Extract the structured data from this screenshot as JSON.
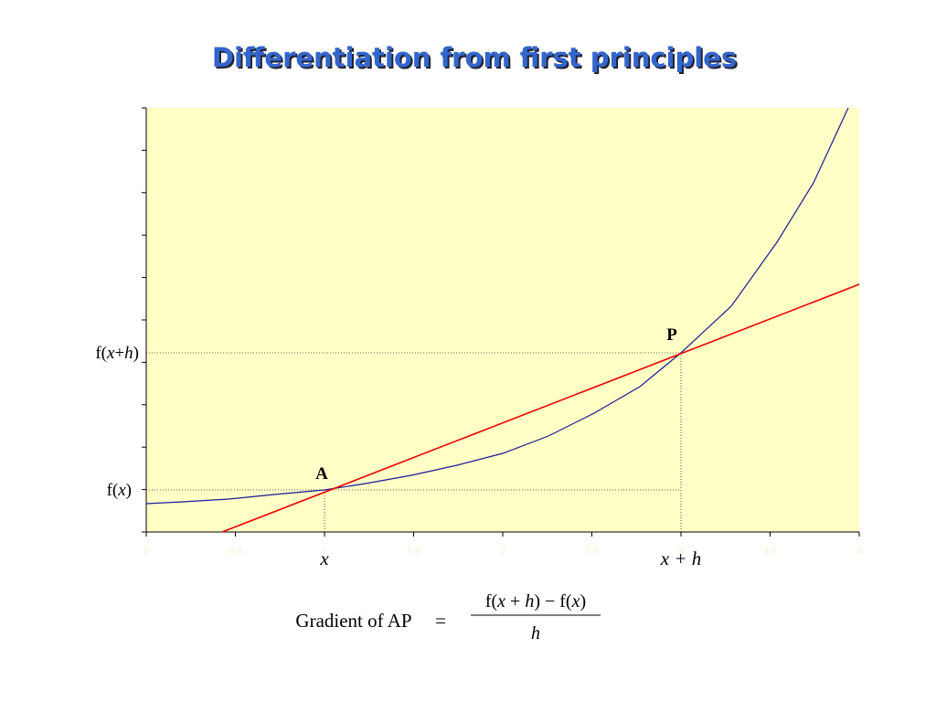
{
  "title": "Differentiation from first principles",
  "y_labels": {
    "fxh": [
      "f(",
      "x",
      "+",
      "h",
      ")"
    ],
    "fx": [
      "f(",
      "x",
      ")"
    ]
  },
  "points": {
    "a": "A",
    "p": "P"
  },
  "axis_tick_labels": [
    "0",
    "0.5",
    "1",
    "1.5",
    "2",
    "2.5",
    "3",
    "3.5",
    "4"
  ],
  "x_labels": {
    "x": "x",
    "xh": "x + h"
  },
  "formula": {
    "lhs": "Gradient of AP",
    "equals": "=",
    "numerator": [
      "f(",
      "x",
      " + ",
      "h",
      ") − f(",
      "x",
      ")"
    ],
    "denominator": "h"
  }
}
